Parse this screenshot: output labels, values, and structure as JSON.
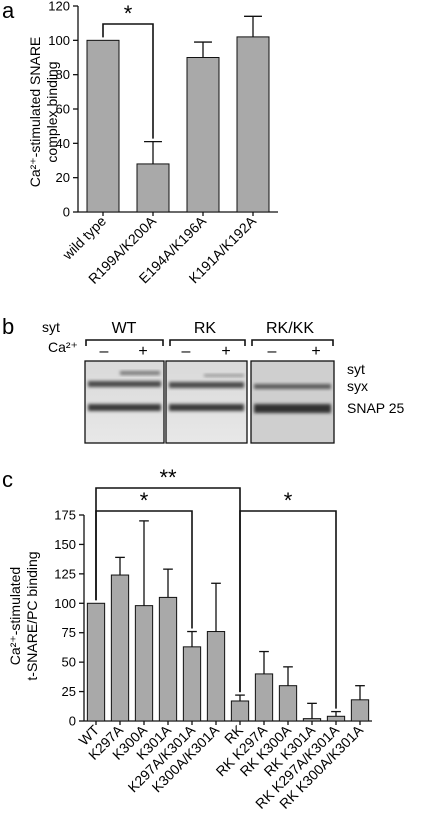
{
  "chart_data": [
    {
      "type": "bar",
      "panel": "a",
      "ylabel": [
        "Ca²⁺-stimulated SNARE",
        "complex binding"
      ],
      "categories": [
        "wild type",
        "R199A/K200A",
        "E194A/K196A",
        "K191A/K192A"
      ],
      "values": [
        100,
        28,
        90,
        102
      ],
      "errors": [
        0,
        13,
        9,
        12
      ],
      "ylim": [
        0,
        120
      ],
      "yticks": [
        "0",
        "20",
        "40",
        "60",
        "80",
        "100",
        "120"
      ],
      "significance": [
        {
          "from": 0,
          "to": 1,
          "label": "*"
        }
      ]
    },
    {
      "type": "bar",
      "panel": "c",
      "ylabel": [
        "Ca²⁺-stimulated",
        "t-SNARE/PC binding"
      ],
      "categories": [
        "WT",
        "K297A",
        "K300A",
        "K301A",
        "K297A/K301A",
        "K300A/K301A",
        "RK",
        "RK K297A",
        "RK K300A",
        "RK K301A",
        "RK K297A/K301A",
        "RK K300A/K301A"
      ],
      "values": [
        100,
        124,
        98,
        105,
        63,
        76,
        17,
        40,
        30,
        2,
        4,
        18
      ],
      "errors": [
        0,
        15,
        72,
        24,
        13,
        41,
        5,
        19,
        16,
        13,
        4,
        12
      ],
      "ylim": [
        0,
        175
      ],
      "yticks": [
        "0",
        "25",
        "50",
        "75",
        "100",
        "125",
        "150",
        "175"
      ],
      "significance": [
        {
          "from": 0,
          "to": 6,
          "label": "**"
        },
        {
          "from": 0,
          "to": 4,
          "label": "*"
        },
        {
          "from": 6,
          "to": 10,
          "label": "*"
        }
      ]
    }
  ],
  "panel_b": {
    "letter": "b",
    "syt_label": "syt",
    "ca_label": "Ca²⁺",
    "lanes": [
      {
        "name": "WT",
        "minus": "–",
        "plus": "+"
      },
      {
        "name": "RK",
        "minus": "–",
        "plus": "+"
      },
      {
        "name": "RK/KK",
        "minus": "–",
        "plus": "+"
      }
    ],
    "band_labels": [
      "syt",
      "syx",
      "SNAP 25"
    ]
  },
  "panel_letters": {
    "a": "a",
    "c": "c"
  }
}
